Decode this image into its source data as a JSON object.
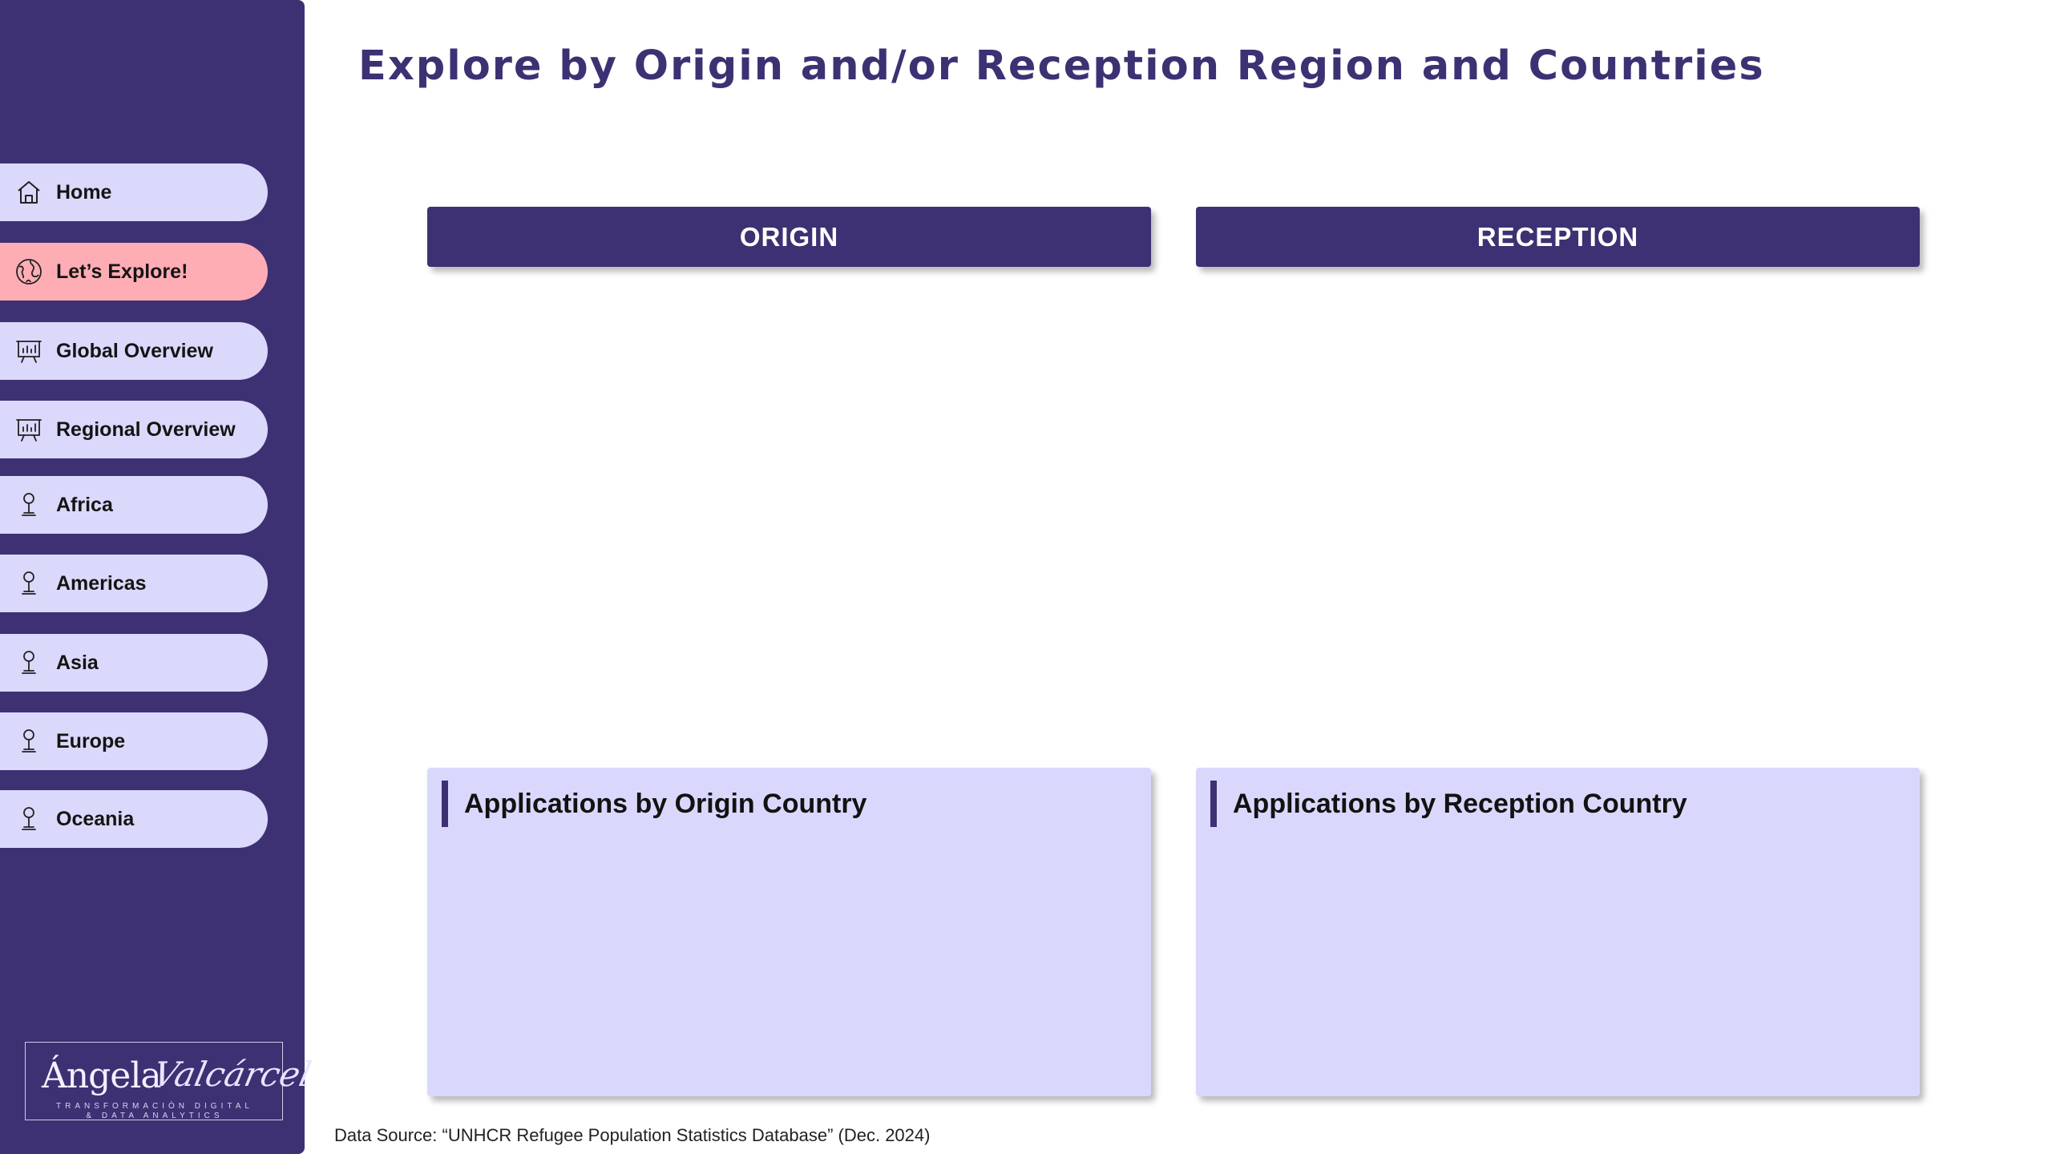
{
  "page": {
    "title": "Explore by Origin and/or Reception Region and Countries",
    "source": "Data Source:  “UNHCR Refugee Population Statistics Database” (Dec. 2024)"
  },
  "colors": {
    "primary": "#3d3173",
    "nav_background": "#dbd9fb",
    "nav_active": "#ffadb5",
    "card_background": "#d9d8fc"
  },
  "sidebar": {
    "items": [
      {
        "label": "Home",
        "icon": "home-icon",
        "active": false
      },
      {
        "label": "Let’s Explore!",
        "icon": "globe-icon",
        "active": true
      },
      {
        "label": "Global Overview",
        "icon": "presentation-board-icon",
        "active": false
      },
      {
        "label": "Regional Overview",
        "icon": "presentation-board-icon",
        "active": false
      },
      {
        "label": "Africa",
        "icon": "map-pin-icon",
        "active": false
      },
      {
        "label": "Americas",
        "icon": "map-pin-icon",
        "active": false
      },
      {
        "label": "Asia",
        "icon": "map-pin-icon",
        "active": false
      },
      {
        "label": "Europe",
        "icon": "map-pin-icon",
        "active": false
      },
      {
        "label": "Oceania",
        "icon": "map-pin-icon",
        "active": false
      }
    ],
    "logo": {
      "name": "Ángela",
      "script": "Valcárcel",
      "tagline_1": "TRANSFORMACIÓN DIGITAL",
      "tagline_2": "& DATA ANALYTICS"
    }
  },
  "main": {
    "origin_button": "ORIGIN",
    "reception_button": "RECEPTION",
    "origin_card_title": "Applications by Origin Country",
    "reception_card_title": "Applications by Reception Country"
  }
}
